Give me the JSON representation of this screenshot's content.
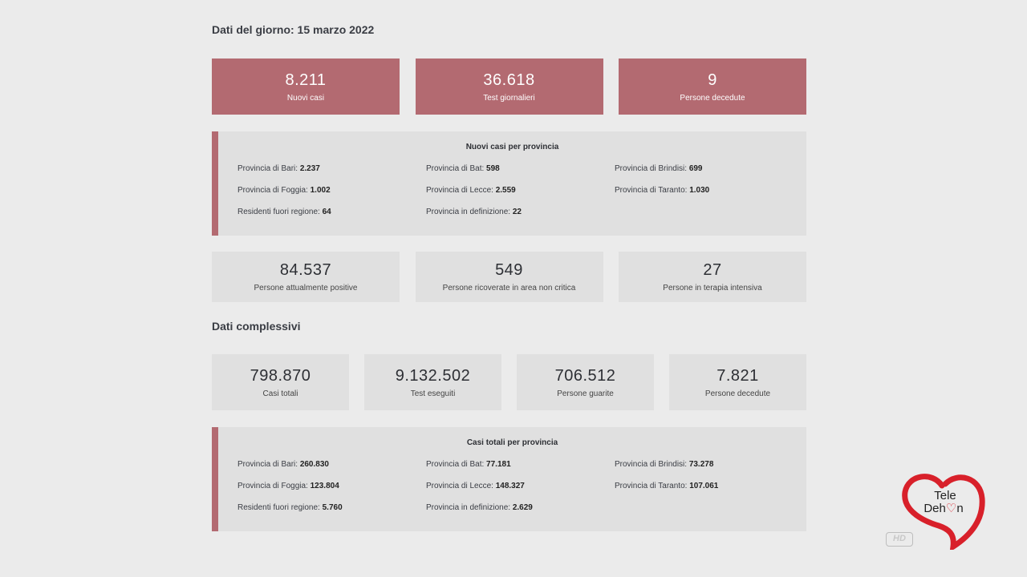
{
  "daily": {
    "title": "Dati del giorno: 15 marzo 2022",
    "top_stats": [
      {
        "value": "8.211",
        "label": "Nuovi casi"
      },
      {
        "value": "36.618",
        "label": "Test giornalieri"
      },
      {
        "value": "9",
        "label": "Persone decedute"
      }
    ],
    "provinces": {
      "title": "Nuovi casi per provincia",
      "items": [
        {
          "label": "Provincia di Bari: ",
          "value": "2.237"
        },
        {
          "label": "Provincia di Bat: ",
          "value": "598"
        },
        {
          "label": "Provincia di Brindisi: ",
          "value": "699"
        },
        {
          "label": "Provincia di Foggia: ",
          "value": "1.002"
        },
        {
          "label": "Provincia di Lecce: ",
          "value": "2.559"
        },
        {
          "label": "Provincia di Taranto: ",
          "value": "1.030"
        },
        {
          "label": "Residenti fuori regione: ",
          "value": "64"
        },
        {
          "label": "Provincia in definizione: ",
          "value": "22"
        }
      ]
    },
    "mid_stats": [
      {
        "value": "84.537",
        "label": "Persone attualmente positive"
      },
      {
        "value": "549",
        "label": "Persone ricoverate in area non critica"
      },
      {
        "value": "27",
        "label": "Persone in terapia intensiva"
      }
    ]
  },
  "overall": {
    "title": "Dati complessivi",
    "stats": [
      {
        "value": "798.870",
        "label": "Casi totali"
      },
      {
        "value": "9.132.502",
        "label": "Test eseguiti"
      },
      {
        "value": "706.512",
        "label": "Persone guarite"
      },
      {
        "value": "7.821",
        "label": "Persone decedute"
      }
    ],
    "provinces": {
      "title": "Casi totali per provincia",
      "items": [
        {
          "label": "Provincia di Bari: ",
          "value": "260.830"
        },
        {
          "label": "Provincia di Bat: ",
          "value": "77.181"
        },
        {
          "label": "Provincia di Brindisi: ",
          "value": "73.278"
        },
        {
          "label": "Provincia di Foggia: ",
          "value": "123.804"
        },
        {
          "label": "Provincia di Lecce: ",
          "value": "148.327"
        },
        {
          "label": "Provincia di Taranto: ",
          "value": "107.061"
        },
        {
          "label": "Residenti fuori regione: ",
          "value": "5.760"
        },
        {
          "label": "Provincia in definizione: ",
          "value": "2.629"
        }
      ]
    }
  },
  "watermark": {
    "line1": "Tele",
    "line2": "Deh",
    "line2b": "n",
    "hd": "HD",
    "heart_color": "#d8202a"
  },
  "colors": {
    "accent": "#b36a71",
    "card_grey": "#e0e0e0",
    "background": "#ebebeb"
  }
}
